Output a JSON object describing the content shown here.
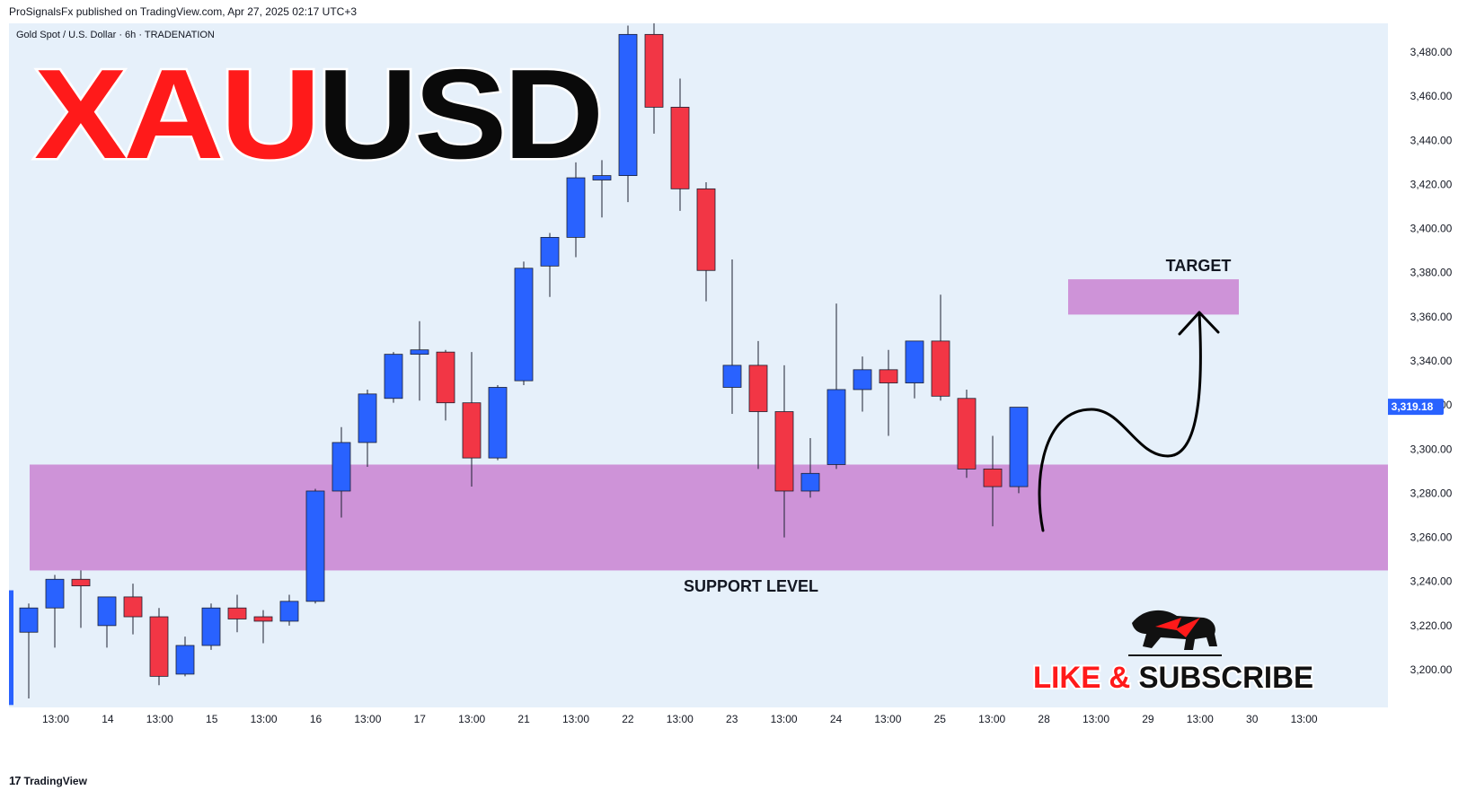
{
  "header": {
    "published": "ProSignalsFx published on TradingView.com, Apr 27, 2025 02:17 UTC+3"
  },
  "symbol_line": "Gold Spot / U.S. Dollar · 6h · TRADENATION",
  "title": {
    "part1": "XAU",
    "part2": "USD"
  },
  "colors": {
    "up": "#2962ff",
    "down": "#f23645",
    "zone": "#ce93d8",
    "bg": "#e6f0fa",
    "title_red": "#ff1a1a",
    "title_black": "#0a0a0a"
  },
  "annotations": {
    "target_label": "TARGET",
    "support_label": "SUPPORT LEVEL",
    "like_label_1": "LIKE",
    "like_label_2": "&",
    "like_label_3": "SUBSCRIBE",
    "current_price": "3,319.18"
  },
  "footer": {
    "brand": "TradingView",
    "logo": "17"
  },
  "chart_data": {
    "type": "candlestick",
    "title": "",
    "ylim": [
      3184,
      3494
    ],
    "y_ticks": [
      "3,200.00",
      "3,220.00",
      "3,240.00",
      "3,260.00",
      "3,280.00",
      "3,300.00",
      "3,320.00",
      "3,340.00",
      "3,360.00",
      "3,380.00",
      "3,400.00",
      "3,420.00",
      "3,440.00",
      "3,460.00",
      "3,480.00"
    ],
    "y_tick_values": [
      3200,
      3220,
      3240,
      3260,
      3280,
      3300,
      3320,
      3340,
      3360,
      3380,
      3400,
      3420,
      3440,
      3460,
      3480
    ],
    "x_ticks": [
      "13:00",
      "14",
      "13:00",
      "15",
      "13:00",
      "16",
      "13:00",
      "17",
      "13:00",
      "21",
      "13:00",
      "22",
      "13:00",
      "23",
      "13:00",
      "24",
      "13:00",
      "25",
      "13:00",
      "28",
      "13:00",
      "29",
      "13:00",
      "30",
      "13:00"
    ],
    "candles": [
      {
        "o": 3217,
        "h": 3230,
        "l": 3187,
        "c": 3228
      },
      {
        "o": 3228,
        "h": 3243,
        "l": 3210,
        "c": 3241
      },
      {
        "o": 3241,
        "h": 3245,
        "l": 3219,
        "c": 3238
      },
      {
        "o": 3220,
        "h": 3232,
        "l": 3210,
        "c": 3233
      },
      {
        "o": 3233,
        "h": 3239,
        "l": 3216,
        "c": 3224
      },
      {
        "o": 3224,
        "h": 3228,
        "l": 3193,
        "c": 3197
      },
      {
        "o": 3198,
        "h": 3215,
        "l": 3197,
        "c": 3211
      },
      {
        "o": 3211,
        "h": 3230,
        "l": 3209,
        "c": 3228
      },
      {
        "o": 3228,
        "h": 3234,
        "l": 3217,
        "c": 3223
      },
      {
        "o": 3224,
        "h": 3227,
        "l": 3212,
        "c": 3222
      },
      {
        "o": 3222,
        "h": 3234,
        "l": 3220,
        "c": 3231
      },
      {
        "o": 3231,
        "h": 3282,
        "l": 3230,
        "c": 3281
      },
      {
        "o": 3281,
        "h": 3310,
        "l": 3269,
        "c": 3303
      },
      {
        "o": 3303,
        "h": 3327,
        "l": 3292,
        "c": 3325
      },
      {
        "o": 3323,
        "h": 3344,
        "l": 3321,
        "c": 3343
      },
      {
        "o": 3343,
        "h": 3358,
        "l": 3322,
        "c": 3345
      },
      {
        "o": 3344,
        "h": 3345,
        "l": 3313,
        "c": 3321
      },
      {
        "o": 3321,
        "h": 3344,
        "l": 3283,
        "c": 3296
      },
      {
        "o": 3296,
        "h": 3329,
        "l": 3295,
        "c": 3328
      },
      {
        "o": 3331,
        "h": 3385,
        "l": 3329,
        "c": 3382
      },
      {
        "o": 3383,
        "h": 3398,
        "l": 3369,
        "c": 3396
      },
      {
        "o": 3396,
        "h": 3430,
        "l": 3387,
        "c": 3423
      },
      {
        "o": 3422,
        "h": 3431,
        "l": 3405,
        "c": 3424
      },
      {
        "o": 3424,
        "h": 3492,
        "l": 3412,
        "c": 3488
      },
      {
        "o": 3488,
        "h": 3494,
        "l": 3443,
        "c": 3455
      },
      {
        "o": 3455,
        "h": 3468,
        "l": 3408,
        "c": 3418
      },
      {
        "o": 3418,
        "h": 3421,
        "l": 3367,
        "c": 3381
      },
      {
        "o": 3328,
        "h": 3386,
        "l": 3316,
        "c": 3338
      },
      {
        "o": 3338,
        "h": 3349,
        "l": 3291,
        "c": 3317
      },
      {
        "o": 3317,
        "h": 3338,
        "l": 3260,
        "c": 3281
      },
      {
        "o": 3281,
        "h": 3305,
        "l": 3278,
        "c": 3289
      },
      {
        "o": 3293,
        "h": 3366,
        "l": 3291,
        "c": 3327
      },
      {
        "o": 3327,
        "h": 3342,
        "l": 3317,
        "c": 3336
      },
      {
        "o": 3336,
        "h": 3345,
        "l": 3306,
        "c": 3330
      },
      {
        "o": 3330,
        "h": 3349,
        "l": 3323,
        "c": 3349
      },
      {
        "o": 3349,
        "h": 3370,
        "l": 3322,
        "c": 3324
      },
      {
        "o": 3323,
        "h": 3327,
        "l": 3287,
        "c": 3291
      },
      {
        "o": 3291,
        "h": 3306,
        "l": 3265,
        "c": 3283
      },
      {
        "o": 3283,
        "h": 3319,
        "l": 3280,
        "c": 3319
      }
    ],
    "zones": [
      {
        "name": "support",
        "from": 3245,
        "to": 3293
      },
      {
        "name": "target",
        "from": 3361,
        "to": 3377
      }
    ]
  }
}
